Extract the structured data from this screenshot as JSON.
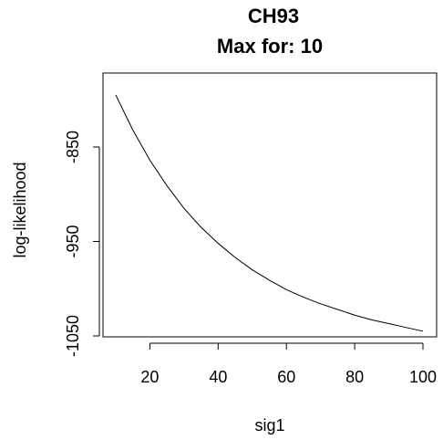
{
  "chart_data": {
    "type": "line",
    "title": "CH93",
    "subtitle": "Max for: 10",
    "xlabel": "sig1",
    "ylabel": "log-likelihood",
    "xlim": [
      10,
      100
    ],
    "ylim": [
      -1050,
      -790
    ],
    "x_ticks": [
      20,
      40,
      60,
      80,
      100
    ],
    "y_ticks": [
      -850,
      -950,
      -1050
    ],
    "x_tick_labels": [
      "20",
      "40",
      "60",
      "80",
      "100"
    ],
    "y_tick_labels": [
      "-850",
      "-950",
      "-1050"
    ],
    "grid": false,
    "series": [
      {
        "x": [
          10,
          15,
          20,
          25,
          30,
          35,
          40,
          45,
          50,
          55,
          60,
          65,
          70,
          75,
          80,
          85,
          90,
          95,
          100
        ],
        "y": [
          -795,
          -832,
          -864,
          -891,
          -915,
          -935,
          -952,
          -967,
          -980,
          -991,
          -1001,
          -1009,
          -1016,
          -1022,
          -1028,
          -1033,
          -1037,
          -1041,
          -1045
        ],
        "color": "#000000"
      }
    ]
  }
}
